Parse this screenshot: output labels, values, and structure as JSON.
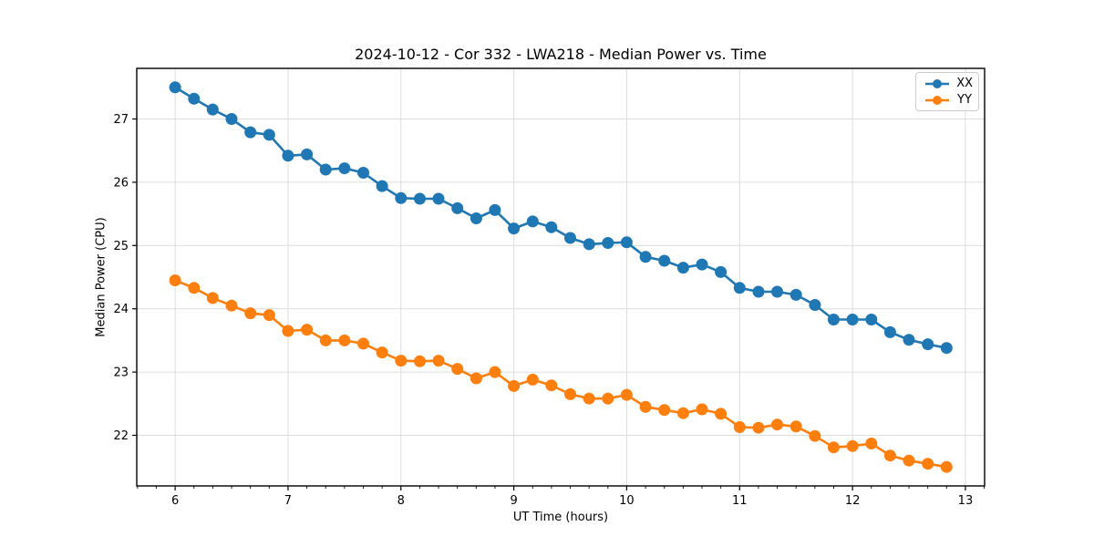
{
  "chart_data": {
    "type": "line",
    "title": "2024-10-12 - Cor 332 - LWA218 - Median Power vs. Time",
    "xlabel": "UT Time (hours)",
    "ylabel": "Median Power (CPU)",
    "xlim": [
      5.66,
      13.17
    ],
    "ylim": [
      21.2,
      27.8
    ],
    "xticks": [
      6,
      7,
      8,
      9,
      10,
      11,
      12,
      13
    ],
    "yticks": [
      22,
      23,
      24,
      25,
      26,
      27
    ],
    "x_minor_tick_step": 0.1667,
    "grid": true,
    "grid_color": "#dcdcdc",
    "legend_position": "upper right",
    "x": [
      6,
      6.167,
      6.333,
      6.5,
      6.667,
      6.833,
      7,
      7.167,
      7.333,
      7.5,
      7.667,
      7.833,
      8,
      8.167,
      8.333,
      8.5,
      8.667,
      8.833,
      9,
      9.167,
      9.333,
      9.5,
      9.667,
      9.833,
      10,
      10.167,
      10.333,
      10.5,
      10.667,
      10.833,
      11,
      11.167,
      11.333,
      11.5,
      11.667,
      11.833,
      12,
      12.167,
      12.333,
      12.5,
      12.667,
      12.833
    ],
    "series": [
      {
        "name": "XX",
        "color": "#1f77b4",
        "values": [
          27.5,
          27.32,
          27.15,
          27.0,
          26.79,
          26.75,
          26.42,
          26.44,
          26.2,
          26.22,
          26.15,
          25.94,
          25.75,
          25.74,
          25.74,
          25.59,
          25.43,
          25.56,
          25.27,
          25.38,
          25.29,
          25.12,
          25.02,
          25.04,
          25.05,
          24.82,
          24.76,
          24.65,
          24.7,
          24.58,
          24.33,
          24.27,
          24.27,
          24.22,
          24.06,
          23.83,
          23.83,
          23.83,
          23.63,
          23.51,
          23.44,
          23.38
        ]
      },
      {
        "name": "YY",
        "color": "#ff7f0e",
        "values": [
          24.45,
          24.33,
          24.17,
          24.05,
          23.93,
          23.9,
          23.65,
          23.67,
          23.5,
          23.5,
          23.45,
          23.31,
          23.18,
          23.17,
          23.18,
          23.05,
          22.9,
          23.0,
          22.78,
          22.88,
          22.79,
          22.65,
          22.58,
          22.58,
          22.64,
          22.45,
          22.4,
          22.35,
          22.41,
          22.34,
          22.13,
          22.12,
          22.17,
          22.14,
          21.99,
          21.81,
          21.83,
          21.87,
          21.68,
          21.6,
          21.55,
          21.5
        ]
      }
    ]
  }
}
